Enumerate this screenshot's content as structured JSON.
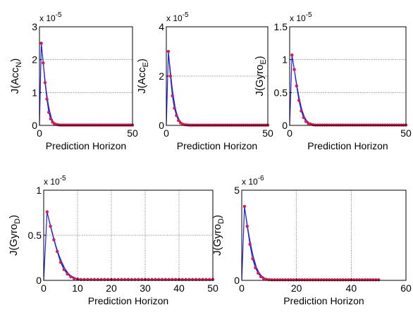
{
  "chart_data": [
    {
      "type": "line",
      "xlabel": "Prediction Horizon",
      "ylabel": "J(Acc",
      "ylabel_sub": "N",
      "ylabel_close": ")",
      "multiplier_base": "x 10",
      "multiplier_exp": "-5",
      "xlim": [
        0,
        50
      ],
      "ylim": [
        0,
        3
      ],
      "xticks": [
        0,
        50
      ],
      "yticks": [
        0,
        1,
        2,
        3
      ],
      "xtick_labels": [
        "0",
        "50"
      ],
      "ytick_labels": [
        "0",
        "1",
        "2",
        "3"
      ],
      "grid": true,
      "series_color": "#1f1fe6",
      "marker_color": "#d02050",
      "series": [
        {
          "x": [
            0,
            1,
            2,
            3,
            4,
            5,
            6,
            7,
            8,
            9,
            10,
            11,
            12,
            13,
            14,
            15,
            16,
            17,
            18,
            19,
            20,
            21,
            22,
            23,
            24,
            25,
            26,
            27,
            28,
            29,
            30,
            31,
            32,
            33,
            34,
            35,
            36,
            37,
            38,
            39,
            40,
            41,
            42,
            43,
            44,
            45,
            46,
            47,
            48,
            49,
            50
          ],
          "y": [
            0,
            2.5,
            1.9,
            1.3,
            0.8,
            0.4,
            0.2,
            0.1,
            0.05,
            0.03,
            0.02,
            0.01,
            0.01,
            0.01,
            0.01,
            0.01,
            0.01,
            0.01,
            0.01,
            0.01,
            0.01,
            0.01,
            0.01,
            0.01,
            0.01,
            0.01,
            0.01,
            0.01,
            0.01,
            0.01,
            0.01,
            0.01,
            0.01,
            0.01,
            0.01,
            0.01,
            0.01,
            0.01,
            0.01,
            0.01,
            0.01,
            0.01,
            0.01,
            0.01,
            0.01,
            0.01,
            0.01,
            0.01,
            0.01,
            0.01,
            0.01
          ]
        }
      ]
    },
    {
      "type": "line",
      "xlabel": "Prediction Horizon",
      "ylabel": "J(Acc",
      "ylabel_sub": "E",
      "ylabel_close": ")",
      "multiplier_base": "x 10",
      "multiplier_exp": "-5",
      "xlim": [
        0,
        50
      ],
      "ylim": [
        0,
        4
      ],
      "xticks": [
        0,
        50
      ],
      "yticks": [
        0,
        2,
        4
      ],
      "xtick_labels": [
        "0",
        "50"
      ],
      "ytick_labels": [
        "0",
        "2",
        "4"
      ],
      "grid": true,
      "series_color": "#1f1fe6",
      "marker_color": "#d02050",
      "series": [
        {
          "x": [
            0,
            1,
            2,
            3,
            4,
            5,
            6,
            7,
            8,
            9,
            10,
            11,
            12,
            13,
            14,
            15,
            16,
            17,
            18,
            19,
            20,
            21,
            22,
            23,
            24,
            25,
            26,
            27,
            28,
            29,
            30,
            31,
            32,
            33,
            34,
            35,
            36,
            37,
            38,
            39,
            40,
            41,
            42,
            43,
            44,
            45,
            46,
            47,
            48,
            49,
            50
          ],
          "y": [
            0,
            3.0,
            2.0,
            1.2,
            0.7,
            0.4,
            0.2,
            0.1,
            0.05,
            0.03,
            0.02,
            0.01,
            0.01,
            0.01,
            0.01,
            0.01,
            0.01,
            0.01,
            0.01,
            0.01,
            0.01,
            0.01,
            0.01,
            0.01,
            0.01,
            0.01,
            0.01,
            0.01,
            0.01,
            0.01,
            0.01,
            0.01,
            0.01,
            0.01,
            0.01,
            0.01,
            0.01,
            0.01,
            0.01,
            0.01,
            0.01,
            0.01,
            0.01,
            0.01,
            0.01,
            0.01,
            0.01,
            0.01,
            0.01,
            0.01,
            0.01
          ]
        }
      ]
    },
    {
      "type": "line",
      "xlabel": "Prediction Horizon",
      "ylabel": "J(Gyro",
      "ylabel_sub": "E",
      "ylabel_close": ")",
      "multiplier_base": "x 10",
      "multiplier_exp": "-5",
      "xlim": [
        0,
        50
      ],
      "ylim": [
        0,
        1.5
      ],
      "xticks": [
        0,
        50
      ],
      "yticks": [
        0,
        0.5,
        1,
        1.5
      ],
      "xtick_labels": [
        "0",
        "50"
      ],
      "ytick_labels": [
        "0",
        "0.5",
        "1",
        "1.5"
      ],
      "grid": true,
      "series_color": "#1f1fe6",
      "marker_color": "#d02050",
      "series": [
        {
          "x": [
            0,
            1,
            2,
            3,
            4,
            5,
            6,
            7,
            8,
            9,
            10,
            11,
            12,
            13,
            14,
            15,
            16,
            17,
            18,
            19,
            20,
            21,
            22,
            23,
            24,
            25,
            26,
            27,
            28,
            29,
            30,
            31,
            32,
            33,
            34,
            35,
            36,
            37,
            38,
            39,
            40,
            41,
            42,
            43,
            44,
            45,
            46,
            47,
            48,
            49,
            50
          ],
          "y": [
            0,
            1.07,
            0.85,
            0.6,
            0.38,
            0.22,
            0.12,
            0.06,
            0.03,
            0.02,
            0.01,
            0.005,
            0.005,
            0.005,
            0.005,
            0.005,
            0.005,
            0.005,
            0.005,
            0.005,
            0.005,
            0.005,
            0.005,
            0.005,
            0.005,
            0.005,
            0.005,
            0.005,
            0.005,
            0.005,
            0.005,
            0.005,
            0.005,
            0.005,
            0.005,
            0.005,
            0.005,
            0.005,
            0.005,
            0.005,
            0.005,
            0.005,
            0.005,
            0.005,
            0.005,
            0.005,
            0.005,
            0.005,
            0.005,
            0.005,
            0.005
          ]
        }
      ]
    },
    {
      "type": "line",
      "xlabel": "Prediction Horizon",
      "ylabel": "J(Gyro",
      "ylabel_sub": "D",
      "ylabel_close": ")",
      "multiplier_base": "x 10",
      "multiplier_exp": "-5",
      "xlim": [
        0,
        50
      ],
      "ylim": [
        0,
        1
      ],
      "xticks": [
        0,
        10,
        20,
        30,
        40,
        50
      ],
      "yticks": [
        0,
        0.5,
        1
      ],
      "xtick_labels": [
        "0",
        "10",
        "20",
        "30",
        "40",
        "50"
      ],
      "ytick_labels": [
        "0",
        "0.5",
        "1"
      ],
      "grid": true,
      "series_color": "#1f1fe6",
      "marker_color": "#d02050",
      "series": [
        {
          "x": [
            0,
            1,
            2,
            3,
            4,
            5,
            6,
            7,
            8,
            9,
            10,
            11,
            12,
            13,
            14,
            15,
            16,
            17,
            18,
            19,
            20,
            21,
            22,
            23,
            24,
            25,
            26,
            27,
            28,
            29,
            30,
            31,
            32,
            33,
            34,
            35,
            36,
            37,
            38,
            39,
            40,
            41,
            42,
            43,
            44,
            45,
            46,
            47,
            48,
            49,
            50
          ],
          "y": [
            0,
            0.76,
            0.6,
            0.45,
            0.32,
            0.2,
            0.12,
            0.07,
            0.04,
            0.02,
            0.015,
            0.01,
            0.01,
            0.01,
            0.01,
            0.01,
            0.01,
            0.01,
            0.01,
            0.01,
            0.01,
            0.01,
            0.01,
            0.01,
            0.01,
            0.01,
            0.01,
            0.01,
            0.01,
            0.01,
            0.01,
            0.01,
            0.01,
            0.01,
            0.01,
            0.01,
            0.01,
            0.01,
            0.01,
            0.01,
            0.01,
            0.01,
            0.01,
            0.01,
            0.01,
            0.01,
            0.01,
            0.01,
            0.01,
            0.01,
            0.01
          ]
        }
      ]
    },
    {
      "type": "line",
      "xlabel": "Prediction Horizon",
      "ylabel": "J(Gyro",
      "ylabel_sub": "D",
      "ylabel_close": ")",
      "multiplier_base": "x 10",
      "multiplier_exp": "-6",
      "xlim": [
        0,
        60
      ],
      "ylim": [
        0,
        5
      ],
      "xticks": [
        0,
        20,
        40,
        60
      ],
      "yticks": [
        0,
        5
      ],
      "xtick_labels": [
        "0",
        "20",
        "40",
        "60"
      ],
      "ytick_labels": [
        "0",
        "5"
      ],
      "grid": true,
      "series_color": "#1f1fe6",
      "marker_color": "#d02050",
      "series": [
        {
          "x": [
            0,
            1,
            2,
            3,
            4,
            5,
            6,
            7,
            8,
            9,
            10,
            11,
            12,
            13,
            14,
            15,
            16,
            17,
            18,
            19,
            20,
            21,
            22,
            23,
            24,
            25,
            26,
            27,
            28,
            29,
            30,
            31,
            32,
            33,
            34,
            35,
            36,
            37,
            38,
            39,
            40,
            41,
            42,
            43,
            44,
            45,
            46,
            47,
            48,
            49,
            50
          ],
          "y": [
            0,
            4.1,
            3.0,
            2.0,
            1.2,
            0.7,
            0.4,
            0.2,
            0.1,
            0.06,
            0.04,
            0.03,
            0.03,
            0.03,
            0.03,
            0.03,
            0.03,
            0.03,
            0.03,
            0.03,
            0.03,
            0.03,
            0.03,
            0.03,
            0.03,
            0.03,
            0.03,
            0.03,
            0.03,
            0.03,
            0.03,
            0.03,
            0.03,
            0.03,
            0.03,
            0.03,
            0.03,
            0.03,
            0.03,
            0.03,
            0.03,
            0.03,
            0.03,
            0.03,
            0.03,
            0.03,
            0.03,
            0.03,
            0.03,
            0.03,
            0.03
          ]
        }
      ]
    }
  ]
}
